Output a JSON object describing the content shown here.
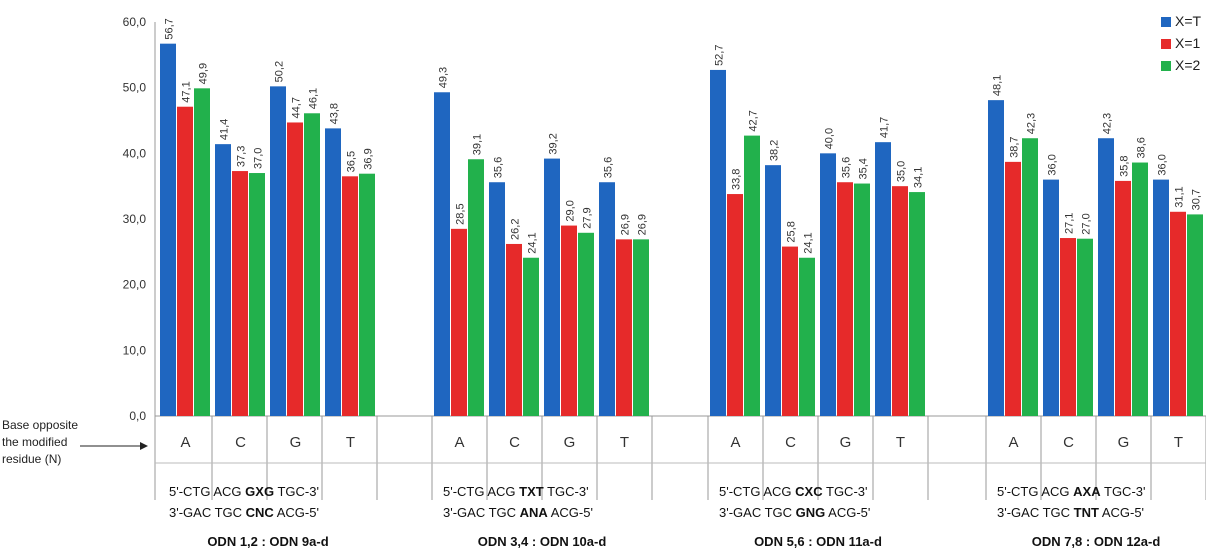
{
  "chart_data": {
    "type": "bar",
    "ylim": [
      0,
      60
    ],
    "y_ticks": [
      "0,0",
      "10,0",
      "20,0",
      "30,0",
      "40,0",
      "50,0",
      "60,0"
    ],
    "grid": false,
    "legend_position": "top-right",
    "x_axis_note": [
      "Base opposite",
      "the modified",
      "residue (N)"
    ],
    "series": [
      {
        "name": "X=T",
        "color": "#1f66c0"
      },
      {
        "name": "X=1",
        "color": "#e62a2a"
      },
      {
        "name": "X=2",
        "color": "#22b14c"
      }
    ],
    "groups": [
      {
        "categories": [
          "A",
          "C",
          "G",
          "T"
        ],
        "values": [
          [
            56.7,
            47.1,
            49.9
          ],
          [
            41.4,
            37.3,
            37.0
          ],
          [
            50.2,
            44.7,
            46.1
          ],
          [
            43.8,
            36.5,
            36.9
          ]
        ],
        "labels": [
          [
            "56,7",
            "47,1",
            "49,9"
          ],
          [
            "41,4",
            "37,3",
            "37,0"
          ],
          [
            "50,2",
            "44,7",
            "46,1"
          ],
          [
            "43,8",
            "36,5",
            "36,9"
          ]
        ],
        "seq1": {
          "pre": "5'-CTG ACG ",
          "bold": "GXG",
          "post": " TGC-3'"
        },
        "seq2": {
          "pre": "3'-GAC TGC ",
          "bold": "CNC",
          "post": " ACG-5'"
        },
        "odn_label": "ODN 1,2 : ODN 9a-d"
      },
      {
        "categories": [
          "A",
          "C",
          "G",
          "T"
        ],
        "values": [
          [
            49.3,
            28.5,
            39.1
          ],
          [
            35.6,
            26.2,
            24.1
          ],
          [
            39.2,
            29.0,
            27.9
          ],
          [
            35.6,
            26.9,
            26.9
          ]
        ],
        "labels": [
          [
            "49,3",
            "28,5",
            "39,1"
          ],
          [
            "35,6",
            "26,2",
            "24,1"
          ],
          [
            "39,2",
            "29,0",
            "27,9"
          ],
          [
            "35,6",
            "26,9",
            "26,9"
          ]
        ],
        "seq1": {
          "pre": "5'-CTG ACG ",
          "bold": "TXT",
          "post": " TGC-3'"
        },
        "seq2": {
          "pre": "3'-GAC TGC ",
          "bold": "ANA",
          "post": " ACG-5'"
        },
        "odn_label": "ODN 3,4 : ODN 10a-d"
      },
      {
        "categories": [
          "A",
          "C",
          "G",
          "T"
        ],
        "values": [
          [
            52.7,
            33.8,
            42.7
          ],
          [
            38.2,
            25.8,
            24.1
          ],
          [
            40.0,
            35.6,
            35.4
          ],
          [
            41.7,
            35.0,
            34.1
          ]
        ],
        "labels": [
          [
            "52,7",
            "33,8",
            "42,7"
          ],
          [
            "38,2",
            "25,8",
            "24,1"
          ],
          [
            "40,0",
            "35,6",
            "35,4"
          ],
          [
            "41,7",
            "35,0",
            "34,1"
          ]
        ],
        "seq1": {
          "pre": "5'-CTG ACG ",
          "bold": "CXC",
          "post": " TGC-3'"
        },
        "seq2": {
          "pre": "3'-GAC TGC ",
          "bold": "GNG",
          "post": " ACG-5'"
        },
        "odn_label": "ODN 5,6 : ODN 11a-d"
      },
      {
        "categories": [
          "A",
          "C",
          "G",
          "T"
        ],
        "values": [
          [
            48.1,
            38.7,
            42.3
          ],
          [
            36.0,
            27.1,
            27.0
          ],
          [
            42.3,
            35.8,
            38.6
          ],
          [
            36.0,
            31.1,
            30.7
          ]
        ],
        "labels": [
          [
            "48,1",
            "38,7",
            "42,3"
          ],
          [
            "36,0",
            "27,1",
            "27,0"
          ],
          [
            "42,3",
            "35,8",
            "38,6"
          ],
          [
            "36,0",
            "31,1",
            "30,7"
          ]
        ],
        "seq1": {
          "pre": "5'-CTG ACG ",
          "bold": "AXA",
          "post": " TGC-3'"
        },
        "seq2": {
          "pre": "3'-GAC TGC ",
          "bold": "TNT",
          "post": " ACG-5'"
        },
        "odn_label": "ODN 7,8 : ODN 12a-d"
      }
    ]
  }
}
